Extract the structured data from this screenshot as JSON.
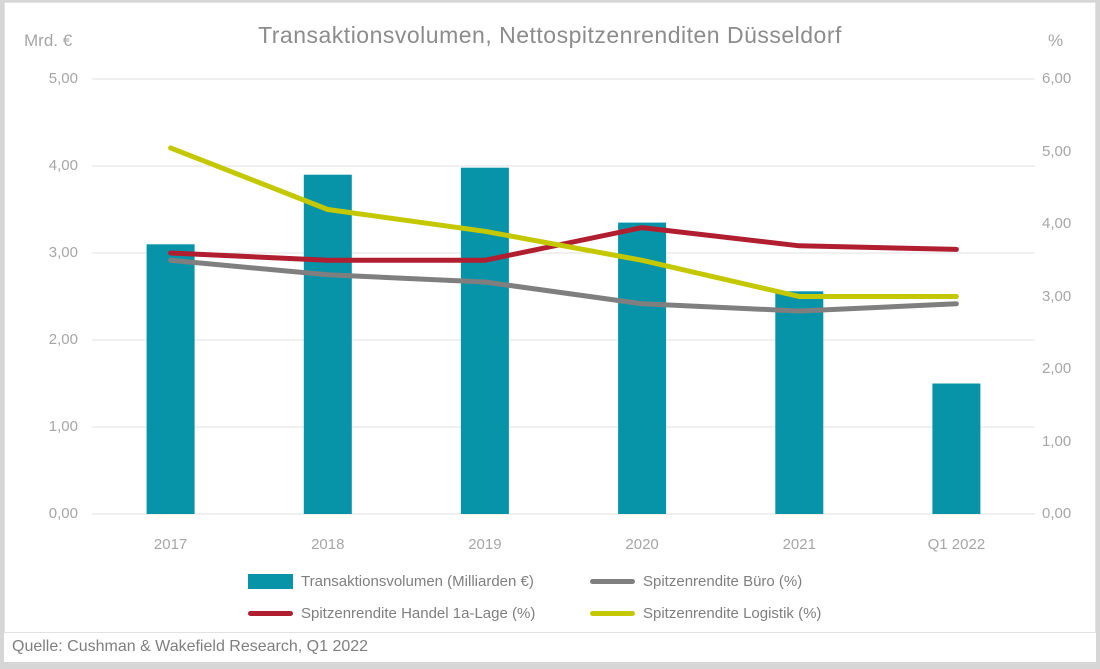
{
  "header": {
    "title": "Transaktionsvolumen, Nettospitzenrenditen Düsseldorf"
  },
  "chart_data": {
    "type": "combo-bar-line",
    "title": "Transaktionsvolumen, Nettospitzenrenditen Düsseldorf",
    "categories": [
      "2017",
      "2018",
      "2019",
      "2020",
      "2021",
      "Q1 2022"
    ],
    "left_axis": {
      "label": "Mrd. €",
      "min": 0,
      "max": 5,
      "ticks_top_to_bottom": [
        "5,00",
        "4,00",
        "3,00",
        "2,00",
        "1,00",
        "0,00"
      ]
    },
    "right_axis": {
      "label": "%",
      "min": 0,
      "max": 6,
      "ticks_top_to_bottom": [
        "6,00",
        "5,00",
        "4,00",
        "3,00",
        "2,00",
        "1,00",
        "0,00"
      ]
    },
    "grid": true,
    "bar_series": {
      "name": "Transaktionsvolumen (Milliarden €)",
      "axis": "left",
      "color": "#0894a8",
      "values": [
        3.1,
        3.9,
        3.98,
        3.35,
        2.56,
        1.5
      ]
    },
    "line_series": [
      {
        "name": "Spitzenrendite Büro (%)",
        "axis": "right",
        "color": "#7f7f7f",
        "values": [
          3.5,
          3.3,
          3.2,
          2.9,
          2.8,
          2.9
        ]
      },
      {
        "name": "Spitzenrendite Handel 1a-Lage (%)",
        "axis": "right",
        "color": "#b01e30",
        "values": [
          3.6,
          3.5,
          3.5,
          3.95,
          3.7,
          3.65
        ]
      },
      {
        "name": "Spitzenrendite Logistik  (%)",
        "axis": "right",
        "color": "#c4c800",
        "values": [
          5.05,
          4.2,
          3.9,
          3.5,
          3.0,
          3.0
        ]
      }
    ],
    "legend_position": "bottom",
    "gridline_color": "#e0e0e0"
  },
  "footer": {
    "source": "Quelle: Cushman & Wakefield Research, Q1 2022"
  }
}
